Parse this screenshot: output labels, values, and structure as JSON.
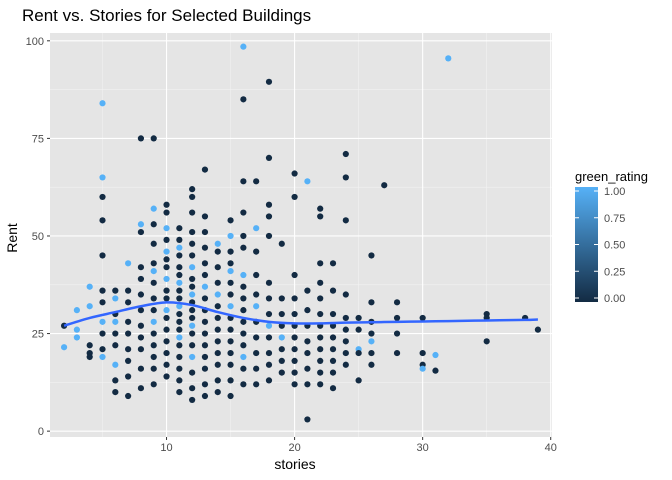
{
  "chart_data": {
    "type": "scatter",
    "title": "Rent vs. Stories for Selected Buildings",
    "xlabel": "stories",
    "ylabel": "Rent",
    "xlim": [
      0.9,
      40.1
    ],
    "ylim": [
      -1.5,
      102
    ],
    "x_ticks": [
      10,
      20,
      30,
      40
    ],
    "x_tick_labels": [
      "10",
      "20",
      "30",
      "40"
    ],
    "y_ticks": [
      0,
      25,
      50,
      75,
      100
    ],
    "y_tick_labels": [
      "0",
      "25",
      "50",
      "75",
      "100"
    ],
    "grid": true,
    "background": "#e5e5e5",
    "legend": {
      "title": "green_rating",
      "placement": "right",
      "type": "colorbar",
      "low_color": "#132b43",
      "high_color": "#56b1f7",
      "ticks": [
        0.0,
        0.25,
        0.5,
        0.75,
        1.0
      ],
      "tick_labels": [
        "0.00",
        "0.25",
        "0.50",
        "0.75",
        "1.00"
      ]
    },
    "smooth_color": "#3366ff",
    "points": [
      [
        2,
        27,
        0
      ],
      [
        2,
        21.5,
        1
      ],
      [
        3,
        26,
        1
      ],
      [
        3,
        24,
        1
      ],
      [
        3,
        31,
        1
      ],
      [
        4,
        37,
        1
      ],
      [
        4,
        32,
        1
      ],
      [
        4,
        20,
        0
      ],
      [
        4,
        22,
        0
      ],
      [
        4,
        19,
        0
      ],
      [
        5,
        84,
        1
      ],
      [
        5,
        65,
        1
      ],
      [
        5,
        60,
        0
      ],
      [
        5,
        54,
        0
      ],
      [
        5,
        45,
        0
      ],
      [
        5,
        36,
        0
      ],
      [
        5,
        33,
        0
      ],
      [
        5,
        28,
        1
      ],
      [
        5,
        25,
        0
      ],
      [
        5,
        21,
        0
      ],
      [
        5,
        19,
        1
      ],
      [
        6,
        36,
        0
      ],
      [
        6,
        34,
        1
      ],
      [
        6,
        30,
        0
      ],
      [
        6,
        28,
        1
      ],
      [
        6,
        25,
        0
      ],
      [
        6,
        22,
        0
      ],
      [
        6,
        17,
        1
      ],
      [
        6,
        13,
        0
      ],
      [
        6,
        10,
        0
      ],
      [
        7,
        43,
        1
      ],
      [
        7,
        36,
        0
      ],
      [
        7,
        33,
        0
      ],
      [
        7,
        28,
        0
      ],
      [
        7,
        25,
        0
      ],
      [
        7,
        21,
        0
      ],
      [
        7,
        18,
        0
      ],
      [
        7,
        14,
        0
      ],
      [
        7,
        9,
        0
      ],
      [
        8,
        75,
        0
      ],
      [
        8,
        53,
        1
      ],
      [
        8,
        51,
        0
      ],
      [
        8,
        42,
        0
      ],
      [
        8,
        39,
        0
      ],
      [
        8,
        35,
        0
      ],
      [
        8,
        31,
        0
      ],
      [
        8,
        27,
        0
      ],
      [
        8,
        24,
        0
      ],
      [
        8,
        21,
        0
      ],
      [
        8,
        16,
        0
      ],
      [
        8,
        11,
        0
      ],
      [
        9,
        75,
        0
      ],
      [
        9,
        57,
        1
      ],
      [
        9,
        53,
        0
      ],
      [
        9,
        48,
        0
      ],
      [
        9,
        43,
        0
      ],
      [
        9,
        41,
        1
      ],
      [
        9,
        38,
        0
      ],
      [
        9,
        34,
        0
      ],
      [
        9,
        31,
        0
      ],
      [
        9,
        28,
        1
      ],
      [
        9,
        25,
        0
      ],
      [
        9,
        22,
        0
      ],
      [
        9,
        19,
        0
      ],
      [
        9,
        16,
        0
      ],
      [
        9,
        12,
        0
      ],
      [
        10,
        58,
        0
      ],
      [
        10,
        56,
        0
      ],
      [
        10,
        52,
        1
      ],
      [
        10,
        49,
        0
      ],
      [
        10,
        46,
        1
      ],
      [
        10,
        44,
        0
      ],
      [
        10,
        42,
        0
      ],
      [
        10,
        39,
        1
      ],
      [
        10,
        36,
        0
      ],
      [
        10,
        34,
        0
      ],
      [
        10,
        31,
        1
      ],
      [
        10,
        29,
        0
      ],
      [
        10,
        26,
        0
      ],
      [
        10,
        23,
        0
      ],
      [
        10,
        20,
        0
      ],
      [
        10,
        17,
        0
      ],
      [
        10,
        14,
        0
      ],
      [
        11,
        52,
        0
      ],
      [
        11,
        49,
        0
      ],
      [
        11,
        47,
        1
      ],
      [
        11,
        45,
        0
      ],
      [
        11,
        42,
        0
      ],
      [
        11,
        40,
        0
      ],
      [
        11,
        38,
        1
      ],
      [
        11,
        36,
        0
      ],
      [
        11,
        34,
        0
      ],
      [
        11,
        32,
        1
      ],
      [
        11,
        30,
        0
      ],
      [
        11,
        28,
        0
      ],
      [
        11,
        26,
        0
      ],
      [
        11,
        24,
        1
      ],
      [
        11,
        22,
        0
      ],
      [
        11,
        19,
        0
      ],
      [
        11,
        16,
        0
      ],
      [
        11,
        13,
        0
      ],
      [
        11,
        10,
        0
      ],
      [
        12,
        62,
        0
      ],
      [
        12,
        60,
        0
      ],
      [
        12,
        56,
        0
      ],
      [
        12,
        51,
        0
      ],
      [
        12,
        48,
        0
      ],
      [
        12,
        45,
        0
      ],
      [
        12,
        42,
        1
      ],
      [
        12,
        39,
        0
      ],
      [
        12,
        37,
        0
      ],
      [
        12,
        35,
        1
      ],
      [
        12,
        33,
        0
      ],
      [
        12,
        31,
        0
      ],
      [
        12,
        29,
        0
      ],
      [
        12,
        27,
        1
      ],
      [
        12,
        25,
        0
      ],
      [
        12,
        22,
        0
      ],
      [
        12,
        19,
        1
      ],
      [
        12,
        15,
        0
      ],
      [
        12,
        11,
        0
      ],
      [
        12,
        8,
        0
      ],
      [
        13,
        67,
        0
      ],
      [
        13,
        55,
        0
      ],
      [
        13,
        51,
        0
      ],
      [
        13,
        47,
        0
      ],
      [
        13,
        43,
        0
      ],
      [
        13,
        40,
        0
      ],
      [
        13,
        37,
        1
      ],
      [
        13,
        34,
        0
      ],
      [
        13,
        31,
        0
      ],
      [
        13,
        28,
        0
      ],
      [
        13,
        25,
        0
      ],
      [
        13,
        22,
        0
      ],
      [
        13,
        19,
        0
      ],
      [
        13,
        16,
        0
      ],
      [
        13,
        12,
        0
      ],
      [
        13,
        9,
        0
      ],
      [
        14,
        48,
        1
      ],
      [
        14,
        46,
        0
      ],
      [
        14,
        42,
        0
      ],
      [
        14,
        38,
        0
      ],
      [
        14,
        35,
        1
      ],
      [
        14,
        32,
        0
      ],
      [
        14,
        29,
        0
      ],
      [
        14,
        26,
        0
      ],
      [
        14,
        23,
        0
      ],
      [
        14,
        20,
        0
      ],
      [
        14,
        17,
        0
      ],
      [
        14,
        13,
        0
      ],
      [
        14,
        10,
        0
      ],
      [
        15,
        54,
        0
      ],
      [
        15,
        50,
        1
      ],
      [
        15,
        46,
        0
      ],
      [
        15,
        43,
        0
      ],
      [
        15,
        41,
        1
      ],
      [
        15,
        38,
        0
      ],
      [
        15,
        35,
        0
      ],
      [
        15,
        32,
        1
      ],
      [
        15,
        29,
        0
      ],
      [
        15,
        26,
        0
      ],
      [
        15,
        23,
        0
      ],
      [
        15,
        20,
        0
      ],
      [
        15,
        17,
        0
      ],
      [
        15,
        13,
        0
      ],
      [
        15,
        9,
        0
      ],
      [
        16,
        98.5,
        1
      ],
      [
        16,
        85,
        0
      ],
      [
        16,
        64,
        0
      ],
      [
        16,
        56,
        0
      ],
      [
        16,
        50,
        0
      ],
      [
        16,
        47,
        0
      ],
      [
        16,
        40,
        1
      ],
      [
        16,
        37,
        0
      ],
      [
        16,
        34,
        0
      ],
      [
        16,
        31,
        0
      ],
      [
        16,
        28,
        0
      ],
      [
        16,
        25,
        0
      ],
      [
        16,
        22,
        0
      ],
      [
        16,
        19,
        1
      ],
      [
        16,
        16,
        0
      ],
      [
        16,
        12,
        0
      ],
      [
        17,
        64,
        0
      ],
      [
        17,
        52,
        1
      ],
      [
        17,
        46,
        0
      ],
      [
        17,
        40,
        0
      ],
      [
        17,
        35,
        0
      ],
      [
        17,
        32,
        1
      ],
      [
        17,
        28,
        0
      ],
      [
        17,
        24,
        0
      ],
      [
        17,
        20,
        0
      ],
      [
        17,
        16,
        0
      ],
      [
        17,
        12,
        0
      ],
      [
        18,
        89.5,
        0
      ],
      [
        18,
        70,
        0
      ],
      [
        18,
        58,
        0
      ],
      [
        18,
        55,
        0
      ],
      [
        18,
        50,
        0
      ],
      [
        18,
        38,
        0
      ],
      [
        18,
        34,
        0
      ],
      [
        18,
        30,
        0
      ],
      [
        18,
        27,
        1
      ],
      [
        18,
        24,
        0
      ],
      [
        18,
        20,
        0
      ],
      [
        18,
        17,
        0
      ],
      [
        18,
        13,
        0
      ],
      [
        19,
        48,
        0
      ],
      [
        19,
        34,
        0
      ],
      [
        19,
        30,
        0
      ],
      [
        19,
        27,
        0
      ],
      [
        19,
        24,
        1
      ],
      [
        19,
        21,
        0
      ],
      [
        19,
        18,
        0
      ],
      [
        19,
        15,
        0
      ],
      [
        20,
        66,
        0
      ],
      [
        20,
        60,
        0
      ],
      [
        20,
        40,
        0
      ],
      [
        20,
        34,
        0
      ],
      [
        20,
        30,
        0
      ],
      [
        20,
        27,
        0
      ],
      [
        20,
        24,
        0
      ],
      [
        20,
        21,
        0
      ],
      [
        20,
        18,
        0
      ],
      [
        20,
        15,
        0
      ],
      [
        20,
        12,
        0
      ],
      [
        21,
        64,
        1
      ],
      [
        21,
        36,
        0
      ],
      [
        21,
        31,
        0
      ],
      [
        21,
        27,
        0
      ],
      [
        21,
        23,
        0
      ],
      [
        21,
        20,
        0
      ],
      [
        21,
        16,
        0
      ],
      [
        21,
        12,
        0
      ],
      [
        21,
        3,
        0
      ],
      [
        22,
        57,
        0
      ],
      [
        22,
        55,
        0
      ],
      [
        22,
        43,
        0
      ],
      [
        22,
        38,
        0
      ],
      [
        22,
        34,
        0
      ],
      [
        22,
        30,
        0
      ],
      [
        22,
        27,
        0
      ],
      [
        22,
        24,
        0
      ],
      [
        22,
        21,
        0
      ],
      [
        22,
        18,
        0
      ],
      [
        22,
        15,
        0
      ],
      [
        22,
        12,
        0
      ],
      [
        23,
        43,
        0
      ],
      [
        23,
        36,
        0
      ],
      [
        23,
        30,
        0
      ],
      [
        23,
        27,
        0
      ],
      [
        23,
        24,
        0
      ],
      [
        23,
        21,
        0
      ],
      [
        23,
        18,
        0
      ],
      [
        23,
        15,
        0
      ],
      [
        23,
        11,
        0
      ],
      [
        24,
        71,
        0
      ],
      [
        24,
        65,
        0
      ],
      [
        24,
        54,
        0
      ],
      [
        24,
        35,
        0
      ],
      [
        24,
        29,
        0
      ],
      [
        24,
        26,
        0
      ],
      [
        24,
        23,
        0
      ],
      [
        24,
        20,
        0
      ],
      [
        24,
        17,
        0
      ],
      [
        25,
        29,
        0
      ],
      [
        25,
        26,
        0
      ],
      [
        25,
        21,
        1
      ],
      [
        25,
        20,
        0
      ],
      [
        25,
        13,
        0
      ],
      [
        26,
        45,
        0
      ],
      [
        26,
        33,
        0
      ],
      [
        26,
        28,
        0
      ],
      [
        26,
        25,
        0
      ],
      [
        26,
        23,
        1
      ],
      [
        26,
        20,
        0
      ],
      [
        26,
        17,
        0
      ],
      [
        27,
        63,
        0
      ],
      [
        28,
        33,
        0
      ],
      [
        28,
        29,
        0
      ],
      [
        28,
        25,
        0
      ],
      [
        28,
        20,
        0
      ],
      [
        30,
        29,
        0
      ],
      [
        30,
        20,
        0
      ],
      [
        30,
        17,
        0
      ],
      [
        30,
        16,
        1
      ],
      [
        31,
        15.5,
        0
      ],
      [
        31,
        19.5,
        1
      ],
      [
        32,
        95.5,
        1
      ],
      [
        35,
        30,
        0
      ],
      [
        35,
        29,
        0
      ],
      [
        35,
        23,
        0
      ],
      [
        38,
        29,
        0
      ],
      [
        39,
        26,
        0
      ]
    ],
    "smooth": [
      [
        2,
        27
      ],
      [
        4,
        29
      ],
      [
        6,
        30.5
      ],
      [
        8,
        32
      ],
      [
        10,
        33
      ],
      [
        12,
        32.3
      ],
      [
        14,
        30.5
      ],
      [
        16,
        29
      ],
      [
        18,
        28
      ],
      [
        20,
        27.6
      ],
      [
        22,
        27.6
      ],
      [
        24,
        27.8
      ],
      [
        26,
        27.9
      ],
      [
        28,
        28
      ],
      [
        30,
        28.1
      ],
      [
        32,
        28.2
      ],
      [
        34,
        28.3
      ],
      [
        36,
        28.4
      ],
      [
        38,
        28.5
      ],
      [
        39,
        28.6
      ]
    ]
  }
}
